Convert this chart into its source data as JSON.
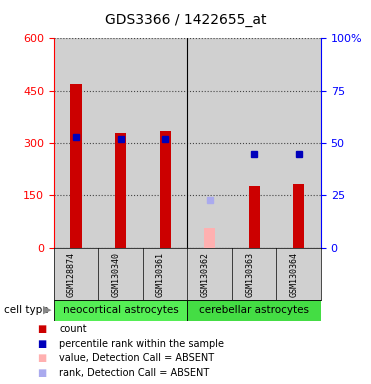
{
  "title": "GDS3366 / 1422655_at",
  "samples": [
    "GSM128874",
    "GSM130340",
    "GSM130361",
    "GSM130362",
    "GSM130363",
    "GSM130364"
  ],
  "count_values": [
    470,
    330,
    335,
    null,
    178,
    183
  ],
  "count_absent_values": [
    null,
    null,
    null,
    55,
    null,
    null
  ],
  "percentile_values": [
    53,
    52,
    52,
    null,
    45,
    45
  ],
  "percentile_absent_values": [
    null,
    null,
    null,
    23,
    null,
    null
  ],
  "left_ylim": [
    0,
    600
  ],
  "right_ylim": [
    0,
    100
  ],
  "left_yticks": [
    0,
    150,
    300,
    450,
    600
  ],
  "right_yticks": [
    0,
    25,
    50,
    75,
    100
  ],
  "right_yticklabels": [
    "0",
    "25",
    "50",
    "75",
    "100%"
  ],
  "bar_width": 0.25,
  "count_color": "#cc0000",
  "count_absent_color": "#ffb0b0",
  "percentile_color": "#0000bb",
  "percentile_absent_color": "#aaaaee",
  "bg_color": "#d0d0d0",
  "grid_color": "#444444",
  "neocortical_color": "#55ee55",
  "cerebellar_color": "#44dd44",
  "legend_items": [
    {
      "color": "#cc0000",
      "label": "count"
    },
    {
      "color": "#0000bb",
      "label": "percentile rank within the sample"
    },
    {
      "color": "#ffb0b0",
      "label": "value, Detection Call = ABSENT"
    },
    {
      "color": "#aaaaee",
      "label": "rank, Detection Call = ABSENT"
    }
  ]
}
